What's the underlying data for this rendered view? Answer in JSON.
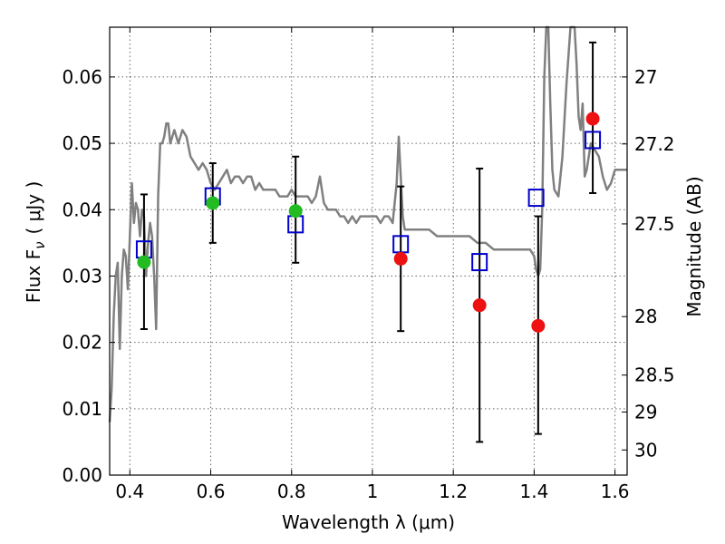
{
  "chart_data": {
    "type": "scatter",
    "xlabel": "Wavelength  λ (μm)",
    "ylabel": "Flux  F",
    "ylabel_sub": "ν",
    "ylabel_units": "( μJy )",
    "y2label": "Magnitude (AB)",
    "xlim": [
      0.35,
      1.63
    ],
    "ylim": [
      0.0,
      0.0675
    ],
    "grid": true,
    "x_ticks": [
      0.4,
      0.6,
      0.8,
      1.0,
      1.2,
      1.4,
      1.6
    ],
    "x_tick_labels": [
      "0.4",
      "0.6",
      "0.8",
      "1",
      "1.2",
      "1.4",
      "1.6"
    ],
    "y_ticks": [
      0.0,
      0.01,
      0.02,
      0.03,
      0.04,
      0.05,
      0.06
    ],
    "y_tick_labels": [
      "0.00",
      "0.01",
      "0.02",
      "0.03",
      "0.04",
      "0.05",
      "0.06"
    ],
    "y2_ticks": [
      27,
      27.2,
      27.5,
      28,
      28.5,
      29,
      30
    ],
    "y2_tick_labels": [
      "27",
      "27.2",
      "27.5",
      "28",
      "28.5",
      "29",
      "30"
    ],
    "series": [
      {
        "kind": "line",
        "color": "#808080",
        "x": [
          0.35,
          0.355,
          0.36,
          0.365,
          0.37,
          0.375,
          0.38,
          0.385,
          0.39,
          0.395,
          0.4,
          0.405,
          0.41,
          0.415,
          0.42,
          0.425,
          0.43,
          0.435,
          0.44,
          0.445,
          0.45,
          0.455,
          0.46,
          0.465,
          0.47,
          0.475,
          0.48,
          0.485,
          0.49,
          0.495,
          0.5,
          0.51,
          0.52,
          0.53,
          0.54,
          0.55,
          0.56,
          0.57,
          0.58,
          0.59,
          0.6,
          0.61,
          0.62,
          0.63,
          0.64,
          0.65,
          0.66,
          0.67,
          0.68,
          0.69,
          0.7,
          0.71,
          0.72,
          0.73,
          0.74,
          0.75,
          0.76,
          0.77,
          0.78,
          0.79,
          0.8,
          0.81,
          0.82,
          0.83,
          0.84,
          0.85,
          0.86,
          0.87,
          0.88,
          0.89,
          0.9,
          0.91,
          0.92,
          0.93,
          0.94,
          0.95,
          0.96,
          0.97,
          0.98,
          0.99,
          1.0,
          1.01,
          1.02,
          1.03,
          1.04,
          1.05,
          1.06,
          1.065,
          1.07,
          1.075,
          1.08,
          1.09,
          1.1,
          1.12,
          1.14,
          1.16,
          1.18,
          1.2,
          1.22,
          1.24,
          1.26,
          1.28,
          1.3,
          1.32,
          1.34,
          1.36,
          1.38,
          1.39,
          1.4,
          1.405,
          1.41,
          1.415,
          1.42,
          1.425,
          1.43,
          1.435,
          1.44,
          1.445,
          1.45,
          1.46,
          1.47,
          1.48,
          1.49,
          1.5,
          1.505,
          1.51,
          1.515,
          1.52,
          1.525,
          1.53,
          1.54,
          1.55,
          1.56,
          1.57,
          1.58,
          1.59,
          1.6,
          1.61,
          1.62,
          1.63
        ],
        "values": [
          0.008,
          0.013,
          0.024,
          0.03,
          0.032,
          0.019,
          0.03,
          0.034,
          0.033,
          0.028,
          0.036,
          0.044,
          0.038,
          0.041,
          0.04,
          0.036,
          0.04,
          0.039,
          0.03,
          0.035,
          0.038,
          0.036,
          0.03,
          0.022,
          0.042,
          0.05,
          0.05,
          0.051,
          0.053,
          0.053,
          0.05,
          0.052,
          0.05,
          0.052,
          0.051,
          0.048,
          0.047,
          0.046,
          0.047,
          0.046,
          0.044,
          0.043,
          0.044,
          0.045,
          0.046,
          0.044,
          0.045,
          0.045,
          0.044,
          0.045,
          0.045,
          0.043,
          0.044,
          0.043,
          0.043,
          0.043,
          0.043,
          0.042,
          0.042,
          0.042,
          0.043,
          0.042,
          0.042,
          0.042,
          0.042,
          0.041,
          0.042,
          0.045,
          0.041,
          0.04,
          0.04,
          0.04,
          0.039,
          0.039,
          0.038,
          0.039,
          0.038,
          0.039,
          0.039,
          0.039,
          0.039,
          0.039,
          0.038,
          0.039,
          0.039,
          0.038,
          0.044,
          0.051,
          0.045,
          0.039,
          0.037,
          0.037,
          0.037,
          0.037,
          0.037,
          0.036,
          0.036,
          0.036,
          0.036,
          0.036,
          0.035,
          0.035,
          0.034,
          0.034,
          0.034,
          0.034,
          0.034,
          0.034,
          0.033,
          0.031,
          0.03,
          0.031,
          0.04,
          0.06,
          0.0675,
          0.0675,
          0.056,
          0.046,
          0.043,
          0.042,
          0.048,
          0.059,
          0.0675,
          0.0675,
          0.062,
          0.054,
          0.052,
          0.056,
          0.045,
          0.046,
          0.05,
          0.049,
          0.048,
          0.045,
          0.043,
          0.044,
          0.046,
          0.046,
          0.046,
          0.046
        ]
      },
      {
        "kind": "marker",
        "shape": "open-square",
        "color": "#0000cc",
        "x": [
          0.435,
          0.605,
          0.81,
          1.07,
          1.265,
          1.405,
          1.545
        ],
        "values": [
          0.034,
          0.042,
          0.0378,
          0.0348,
          0.0321,
          0.0418,
          0.0505
        ]
      },
      {
        "kind": "marker",
        "shape": "filled-circle",
        "color": "#22bb22",
        "x": [
          0.435,
          0.605,
          0.81
        ],
        "values": [
          0.0321,
          0.041,
          0.0398
        ]
      },
      {
        "kind": "marker",
        "shape": "filled-circle",
        "color": "#ee1111",
        "x": [
          1.07,
          1.265,
          1.41,
          1.545
        ],
        "values": [
          0.0326,
          0.0256,
          0.0225,
          0.0537
        ]
      }
    ],
    "error_bars": {
      "x": [
        0.435,
        0.605,
        0.81,
        1.07,
        1.265,
        1.41,
        1.545
      ],
      "lower": [
        0.022,
        0.035,
        0.032,
        0.0217,
        0.005,
        0.0062,
        0.0425
      ],
      "upper": [
        0.0423,
        0.047,
        0.048,
        0.0435,
        0.0462,
        0.039,
        0.0652
      ],
      "color": "#000000"
    }
  }
}
